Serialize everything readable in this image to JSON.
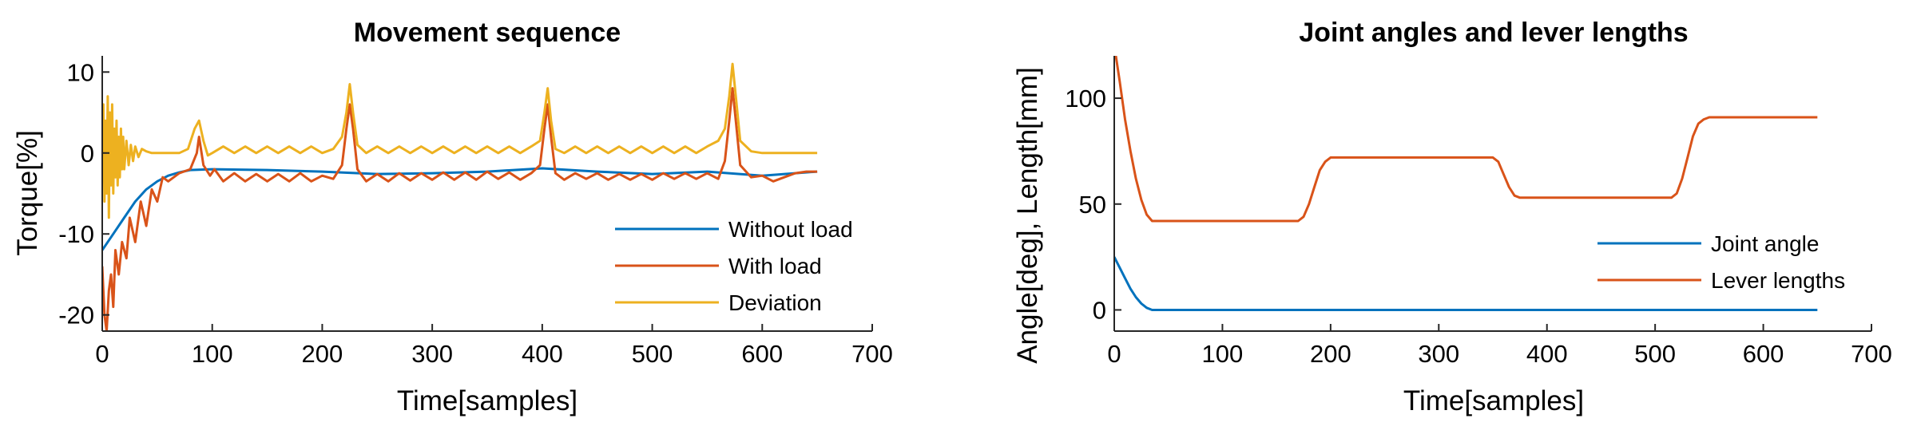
{
  "chart_data": [
    {
      "type": "line",
      "title": "Movement sequence",
      "xlabel": "Time[samples]",
      "ylabel": "Torque[%]",
      "xlim": [
        0,
        700
      ],
      "ylim": [
        -22,
        12
      ],
      "xticks": [
        0,
        100,
        200,
        300,
        400,
        500,
        600,
        700
      ],
      "yticks": [
        -20,
        -10,
        0,
        10
      ],
      "grid": false,
      "legend_position": "bottom-right",
      "series": [
        {
          "name": "Without load",
          "color": "#0072BD",
          "x": [
            0,
            10,
            20,
            30,
            40,
            50,
            60,
            70,
            80,
            100,
            150,
            200,
            250,
            300,
            350,
            400,
            450,
            500,
            550,
            600,
            650
          ],
          "y": [
            -12,
            -10,
            -8,
            -6,
            -4.5,
            -3.5,
            -2.8,
            -2.4,
            -2.1,
            -2.0,
            -2.1,
            -2.3,
            -2.6,
            -2.5,
            -2.3,
            -1.9,
            -2.3,
            -2.6,
            -2.3,
            -2.8,
            -2.3
          ]
        },
        {
          "name": "With load",
          "color": "#D95319",
          "x": [
            0,
            2,
            4,
            6,
            8,
            10,
            12,
            15,
            18,
            22,
            25,
            30,
            35,
            40,
            45,
            50,
            55,
            60,
            70,
            80,
            86,
            88,
            92,
            98,
            102,
            110,
            120,
            130,
            140,
            150,
            160,
            170,
            180,
            190,
            200,
            210,
            218,
            222,
            225,
            228,
            232,
            240,
            250,
            260,
            270,
            280,
            290,
            300,
            310,
            320,
            330,
            340,
            350,
            360,
            370,
            380,
            390,
            398,
            402,
            405,
            408,
            412,
            420,
            430,
            440,
            450,
            460,
            470,
            480,
            490,
            500,
            510,
            520,
            530,
            540,
            550,
            560,
            566,
            570,
            573,
            576,
            580,
            590,
            600,
            610,
            620,
            630,
            640,
            650
          ],
          "y": [
            -14,
            -20,
            -22,
            -17,
            -15,
            -19,
            -12,
            -15,
            -11,
            -13,
            -8,
            -11,
            -6,
            -9,
            -4.5,
            -6,
            -3,
            -3.5,
            -2.5,
            -2,
            0,
            2,
            -1.5,
            -2.8,
            -2,
            -3.5,
            -2.5,
            -3.5,
            -2.6,
            -3.5,
            -2.6,
            -3.5,
            -2.5,
            -3.5,
            -2.8,
            -3.2,
            -1.5,
            3,
            6,
            3,
            -2,
            -3.5,
            -2.6,
            -3.5,
            -2.5,
            -3.4,
            -2.5,
            -3.3,
            -2.4,
            -3.3,
            -2.4,
            -3.3,
            -2.3,
            -3.2,
            -2.4,
            -3.3,
            -2.5,
            -1.5,
            3,
            6,
            2,
            -2.5,
            -3.3,
            -2.5,
            -3.2,
            -2.5,
            -3.3,
            -2.6,
            -3.3,
            -2.6,
            -3.3,
            -2.5,
            -3.2,
            -2.5,
            -3.2,
            -2.5,
            -3.2,
            -1,
            4,
            8,
            4,
            -1.5,
            -3,
            -2.8,
            -3.5,
            -3,
            -2.5,
            -2.3,
            -2.3
          ]
        },
        {
          "name": "Deviation",
          "color": "#EDB120",
          "x": [
            0,
            1,
            2,
            3,
            4,
            5,
            6,
            7,
            8,
            9,
            10,
            11,
            12,
            13,
            14,
            15,
            16,
            17,
            18,
            19,
            20,
            22,
            24,
            26,
            28,
            30,
            33,
            36,
            40,
            45,
            50,
            60,
            70,
            78,
            84,
            88,
            92,
            96,
            100,
            110,
            120,
            130,
            140,
            150,
            160,
            170,
            180,
            190,
            200,
            210,
            218,
            222,
            225,
            228,
            232,
            240,
            250,
            260,
            270,
            280,
            290,
            300,
            310,
            320,
            330,
            340,
            350,
            360,
            370,
            380,
            390,
            398,
            402,
            405,
            408,
            412,
            420,
            430,
            440,
            450,
            460,
            470,
            480,
            490,
            500,
            510,
            520,
            530,
            540,
            550,
            560,
            566,
            570,
            573,
            576,
            580,
            590,
            600,
            610,
            620,
            630,
            640,
            650
          ],
          "y": [
            0,
            6,
            -6,
            4,
            -5,
            7,
            -8,
            5,
            -4,
            6,
            -5,
            3,
            -3,
            4,
            -4,
            2,
            -3,
            3,
            -2,
            2,
            -2,
            1.5,
            -1.5,
            1,
            -1,
            0.8,
            -0.5,
            0.5,
            0.2,
            0,
            0,
            0,
            0,
            0.5,
            3,
            4,
            1.5,
            -0.3,
            0,
            0.8,
            0,
            0.8,
            0,
            0.8,
            0,
            0.8,
            0,
            0.8,
            0,
            0.5,
            2,
            5,
            8.5,
            5,
            1,
            0,
            0.8,
            0,
            0.8,
            0,
            0.8,
            0,
            0.8,
            0,
            0.8,
            0,
            0.8,
            0,
            0.8,
            0,
            0.8,
            1.5,
            5,
            8,
            4,
            0.5,
            0,
            0.8,
            0,
            0.8,
            0,
            0.8,
            0,
            0.8,
            0,
            0.8,
            0,
            0.8,
            0,
            0.8,
            1.5,
            3,
            7,
            11,
            7,
            1.5,
            0.2,
            0,
            0,
            0,
            0,
            0,
            0
          ]
        }
      ]
    },
    {
      "type": "line",
      "title": "Joint angles and lever lengths",
      "xlabel": "Time[samples]",
      "ylabel": "Angle[deg], Length[mm]",
      "xlim": [
        0,
        700
      ],
      "ylim": [
        -10,
        120
      ],
      "xticks": [
        0,
        100,
        200,
        300,
        400,
        500,
        600,
        700
      ],
      "yticks": [
        0,
        50,
        100
      ],
      "grid": false,
      "legend_position": "right",
      "series": [
        {
          "name": "Joint angle",
          "color": "#0072BD",
          "x": [
            0,
            5,
            10,
            15,
            20,
            25,
            30,
            35,
            40,
            100,
            200,
            300,
            400,
            500,
            600,
            650
          ],
          "y": [
            25,
            20,
            15,
            10,
            6,
            3,
            1,
            0,
            0,
            0,
            0,
            0,
            0,
            0,
            0,
            0
          ]
        },
        {
          "name": "Lever lengths",
          "color": "#D95319",
          "x": [
            0,
            5,
            10,
            15,
            20,
            25,
            30,
            35,
            40,
            100,
            170,
            175,
            180,
            185,
            190,
            195,
            200,
            205,
            250,
            300,
            350,
            355,
            360,
            365,
            370,
            375,
            380,
            450,
            515,
            520,
            525,
            530,
            535,
            540,
            545,
            550,
            600,
            650
          ],
          "y": [
            125,
            108,
            90,
            75,
            62,
            52,
            45,
            42,
            42,
            42,
            42,
            44,
            50,
            58,
            66,
            70,
            72,
            72,
            72,
            72,
            72,
            70,
            64,
            58,
            54,
            53,
            53,
            53,
            53,
            55,
            62,
            72,
            82,
            88,
            90,
            91,
            91,
            91
          ]
        }
      ]
    }
  ]
}
